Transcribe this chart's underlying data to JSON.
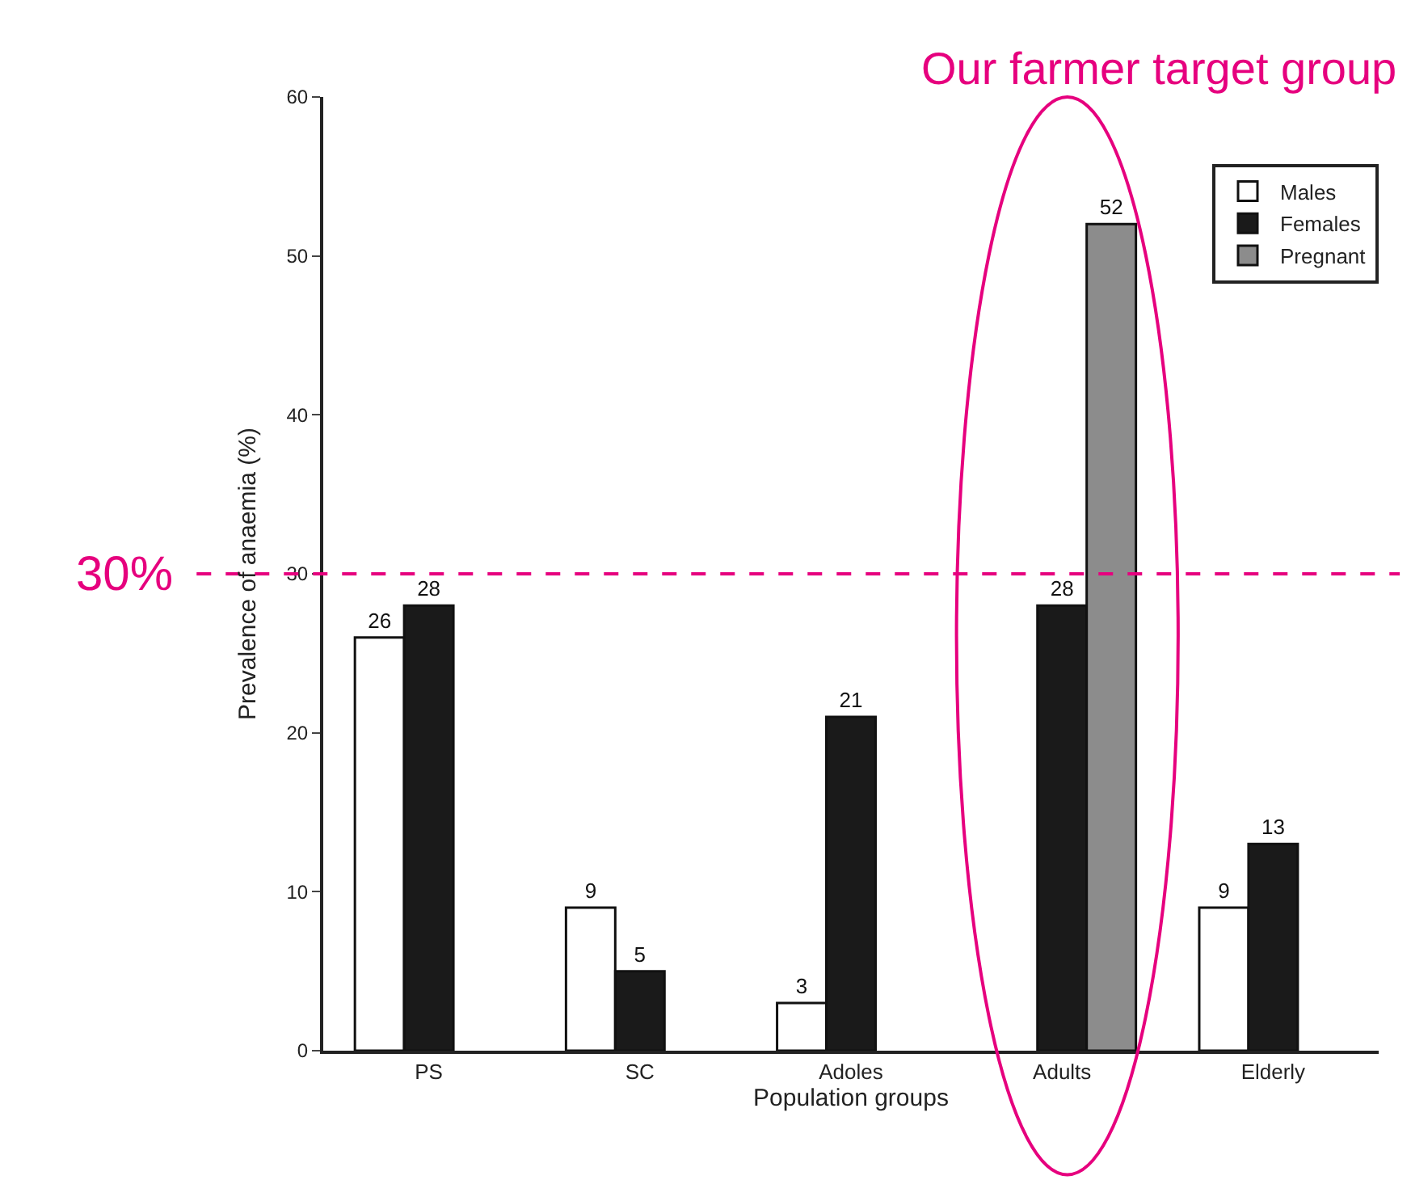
{
  "chart_data": {
    "type": "bar",
    "title": "Our farmer target group",
    "categories": [
      "PS",
      "SC",
      "Adoles",
      "Adults",
      "Elderly"
    ],
    "series": [
      {
        "name": "Males",
        "color": "#ffffff",
        "values": [
          26,
          9,
          3,
          null,
          9
        ]
      },
      {
        "name": "Females",
        "color": "#1a1a1a",
        "values": [
          28,
          5,
          21,
          28,
          13
        ]
      },
      {
        "name": "Pregnant",
        "color": "#8c8c8c",
        "values": [
          null,
          null,
          null,
          52,
          null
        ]
      }
    ],
    "xlabel": "Population groups",
    "ylabel": "Prevalence of anaemia (%)",
    "ylim": [
      0,
      60
    ],
    "yticks": [
      0,
      10,
      20,
      30,
      40,
      50,
      60
    ],
    "ref_lines": [
      {
        "axis": "y",
        "value": 30,
        "label": "30%",
        "color": "#e6007e",
        "line_style": "dashed"
      }
    ],
    "data_labels": true,
    "legend": "top right"
  }
}
